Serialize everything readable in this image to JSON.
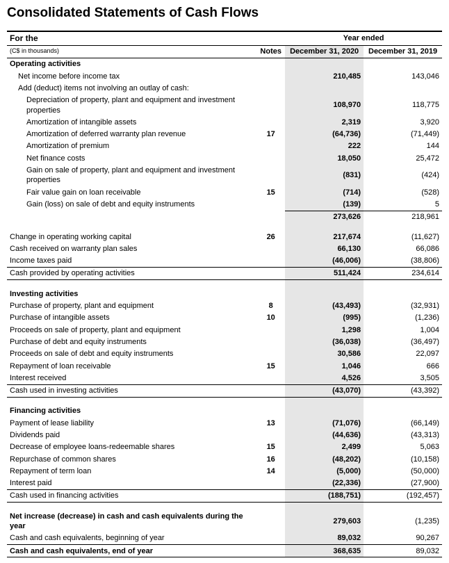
{
  "title": "Consolidated Statements of Cash Flows",
  "header": {
    "for": "For the",
    "year_ended": "Year ended",
    "currency_note": "(C$ in thousands)",
    "notes": "Notes",
    "y1": "December 31, 2020",
    "y2": "December 31, 2019"
  },
  "sections": {
    "operating": "Operating activities",
    "investing": "Investing activities",
    "financing": "Financing activities"
  },
  "rows": {
    "net_income": {
      "label": "Net income before income tax",
      "note": "",
      "y1": "210,485",
      "y2": "143,046"
    },
    "add_deduct": {
      "label": "Add (deduct) items not involving an outlay of cash:"
    },
    "dep": {
      "label": "Depreciation of property, plant and equipment and investment properties",
      "note": "",
      "y1": "108,970",
      "y2": "118,775"
    },
    "amort_int": {
      "label": "Amortization of intangible assets",
      "note": "",
      "y1": "2,319",
      "y2": "3,920"
    },
    "amort_def_war": {
      "label": "Amortization of deferred warranty plan revenue",
      "note": "17",
      "y1": "(64,736)",
      "y2": "(71,449)"
    },
    "amort_prem": {
      "label": "Amortization of premium",
      "note": "",
      "y1": "222",
      "y2": "144"
    },
    "net_fin": {
      "label": "Net finance costs",
      "note": "",
      "y1": "18,050",
      "y2": "25,472"
    },
    "gain_sale_ppe": {
      "label": "Gain on sale of property, plant and equipment and investment properties",
      "note": "",
      "y1": "(831)",
      "y2": "(424)"
    },
    "fv_loan": {
      "label": "Fair value gain on loan receivable",
      "note": "15",
      "y1": "(714)",
      "y2": "(528)"
    },
    "gain_loss_debt": {
      "label": "Gain (loss) on sale of debt and equity instruments",
      "note": "",
      "y1": "(139)",
      "y2": "5"
    },
    "subtotal1": {
      "y1": "273,626",
      "y2": "218,961"
    },
    "chg_wc": {
      "label": "Change in operating working capital",
      "note": "26",
      "y1": "217,674",
      "y2": "(11,627)"
    },
    "cash_war": {
      "label": "Cash received on warranty plan sales",
      "note": "",
      "y1": "66,130",
      "y2": "66,086"
    },
    "inc_tax": {
      "label": "Income taxes paid",
      "note": "",
      "y1": "(46,006)",
      "y2": "(38,806)"
    },
    "cash_op": {
      "label": "Cash provided by operating activities",
      "note": "",
      "y1": "511,424",
      "y2": "234,614"
    },
    "pur_ppe": {
      "label": "Purchase of property, plant and equipment",
      "note": "8",
      "y1": "(43,493)",
      "y2": "(32,931)"
    },
    "pur_int": {
      "label": "Purchase of intangible assets",
      "note": "10",
      "y1": "(995)",
      "y2": "(1,236)"
    },
    "proc_ppe": {
      "label": "Proceeds on sale of property, plant and equipment",
      "note": "",
      "y1": "1,298",
      "y2": "1,004"
    },
    "pur_debt": {
      "label": "Purchase of debt and equity instruments",
      "note": "",
      "y1": "(36,038)",
      "y2": "(36,497)"
    },
    "proc_debt": {
      "label": "Proceeds on sale of debt and equity instruments",
      "note": "",
      "y1": "30,586",
      "y2": "22,097"
    },
    "rep_loan": {
      "label": "Repayment of loan receivable",
      "note": "15",
      "y1": "1,046",
      "y2": "666"
    },
    "int_rec": {
      "label": "Interest received",
      "note": "",
      "y1": "4,526",
      "y2": "3,505"
    },
    "cash_inv": {
      "label": "Cash used in investing activities",
      "note": "",
      "y1": "(43,070)",
      "y2": "(43,392)"
    },
    "pay_lease": {
      "label": "Payment of lease liability",
      "note": "13",
      "y1": "(71,076)",
      "y2": "(66,149)"
    },
    "div_paid": {
      "label": "Dividends paid",
      "note": "",
      "y1": "(44,636)",
      "y2": "(43,313)"
    },
    "dec_emp": {
      "label": "Decrease of employee loans-redeemable shares",
      "note": "15",
      "y1": "2,499",
      "y2": "5,063"
    },
    "rep_common": {
      "label": "Repurchase of common shares",
      "note": "16",
      "y1": "(48,202)",
      "y2": "(10,158)"
    },
    "rep_term": {
      "label": "Repayment of term loan",
      "note": "14",
      "y1": "(5,000)",
      "y2": "(50,000)"
    },
    "int_paid": {
      "label": "Interest paid",
      "note": "",
      "y1": "(22,336)",
      "y2": "(27,900)"
    },
    "cash_fin": {
      "label": "Cash used in financing activities",
      "note": "",
      "y1": "(188,751)",
      "y2": "(192,457)"
    },
    "net_inc_cash": {
      "label": "Net increase (decrease) in cash and cash equivalents during the year",
      "note": "",
      "y1": "279,603",
      "y2": "(1,235)"
    },
    "cash_beg": {
      "label": "Cash and cash equivalents, beginning of year",
      "note": "",
      "y1": "89,032",
      "y2": "90,267"
    },
    "cash_end": {
      "label": "Cash and cash equivalents, end of year",
      "note": "",
      "y1": "368,635",
      "y2": "89,032"
    }
  },
  "style": {
    "highlight_bg": "#e6e6e6",
    "text_color": "#000000",
    "font_family": "Arial",
    "title_fontsize": 19,
    "body_fontsize": 11
  }
}
